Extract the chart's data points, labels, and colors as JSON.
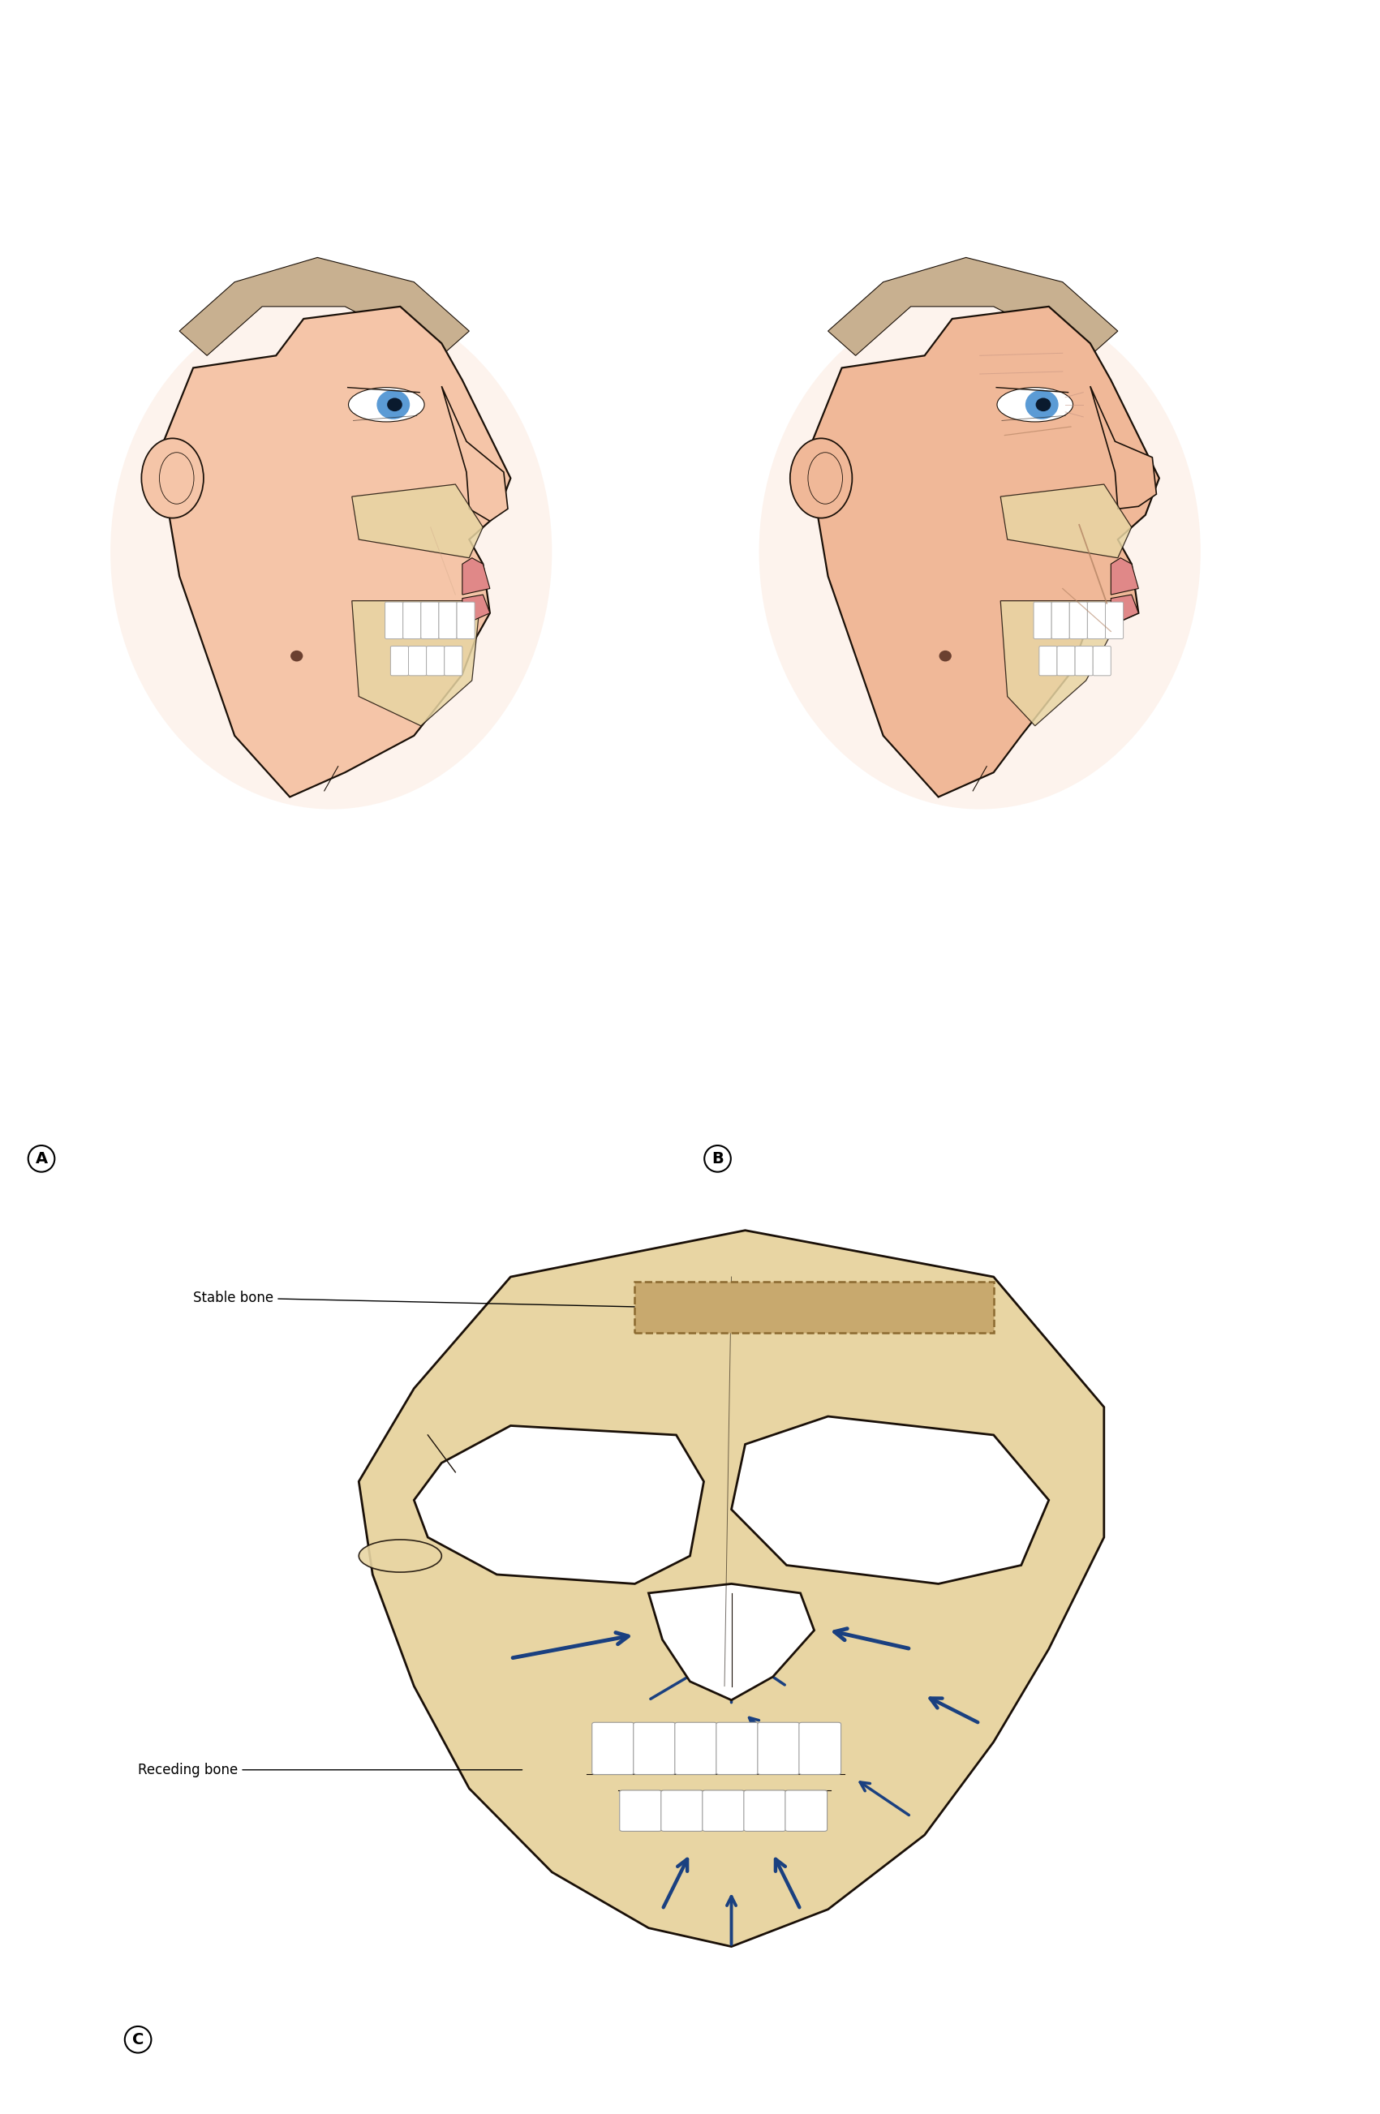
{
  "background_color": "#ffffff",
  "label_A": "A",
  "label_B": "B",
  "label_C": "C",
  "stable_bone_label": "Stable bone",
  "receding_bone_label": "Receding bone",
  "skin_color": "#f5c5a8",
  "skin_color_aged": "#f0b898",
  "bone_color": "#e8d5a3",
  "skull_outline": "#1a1008",
  "arrow_color": "#1a4080",
  "stable_box_fill": "#c8a96e",
  "stable_box_edge": "#8b6a30",
  "hair_color": "#c8b090",
  "eye_color": "#5b9bd5",
  "lip_color": "#e08888",
  "label_fontsize": 14,
  "annotation_fontsize": 12,
  "figure_width": 17.01,
  "figure_height": 26.06
}
